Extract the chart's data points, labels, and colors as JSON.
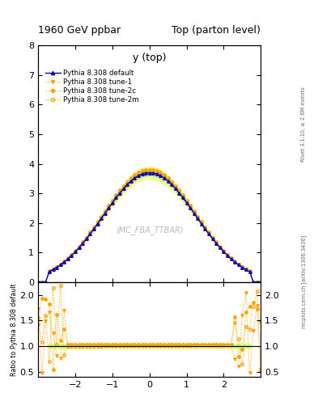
{
  "title_left": "1960 GeV ppbar",
  "title_right": "Top (parton level)",
  "ylabel_ratio": "Ratio to Pythia 8.308 default",
  "plot_label": "y (top)",
  "watermark": "(MC_FBA_TTBAR)",
  "right_label_top": "Rivet 3.1.10, ≥ 2.6M events",
  "right_label_bottom": "mcplots.cern.ch [arXiv:1306.3436]",
  "ylim_main": [
    0,
    8
  ],
  "ylim_ratio": [
    0.4,
    2.25
  ],
  "xlim": [
    -3.0,
    3.0
  ],
  "xticks": [
    -2,
    -1,
    0,
    1,
    2
  ],
  "yticks_main": [
    0,
    1,
    2,
    3,
    4,
    5,
    6,
    7,
    8
  ],
  "yticks_ratio": [
    0.5,
    1.0,
    1.5,
    2.0
  ],
  "legend_entries": [
    "Pythia 8.308 default",
    "Pythia 8.308 tune-1",
    "Pythia 8.308 tune-2c",
    "Pythia 8.308 tune-2m"
  ],
  "color_default": "#0000cc",
  "color_orange": "#ffa500",
  "band_color_green": "#98fb98",
  "band_color_yellow": "#ffff80",
  "background": "#ffffff"
}
